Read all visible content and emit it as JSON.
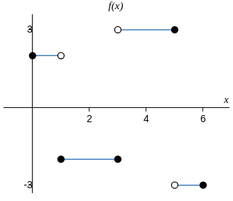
{
  "chart_data": {
    "type": "line",
    "title": "f(x)",
    "x_label": "x",
    "xlim": [
      -1,
      6.9
    ],
    "ylim": [
      -3.3,
      3.6
    ],
    "xticks": [
      2,
      4,
      6
    ],
    "yticks": [
      -3,
      3
    ],
    "grid": false,
    "series": [
      {
        "type": "line",
        "color": "#3f7fbf",
        "x": [
          0,
          1
        ],
        "values": [
          2,
          2
        ]
      },
      {
        "type": "line",
        "color": "#3f7fbf",
        "x": [
          1,
          3
        ],
        "values": [
          -2,
          -2
        ]
      },
      {
        "type": "line",
        "color": "#3f7fbf",
        "x": [
          3,
          5
        ],
        "values": [
          3,
          3
        ]
      },
      {
        "type": "line",
        "color": "#3f7fbf",
        "x": [
          5,
          6
        ],
        "values": [
          -3,
          -3
        ]
      },
      {
        "type": "scatter",
        "marker": "filled",
        "color": "#000000",
        "x": [
          0,
          1,
          3,
          5,
          6
        ],
        "values": [
          2,
          -2,
          -2,
          3,
          -3
        ]
      },
      {
        "type": "scatter",
        "marker": "open",
        "color": "#000000",
        "x": [
          1,
          3,
          5
        ],
        "values": [
          2,
          3,
          -3
        ]
      }
    ]
  }
}
